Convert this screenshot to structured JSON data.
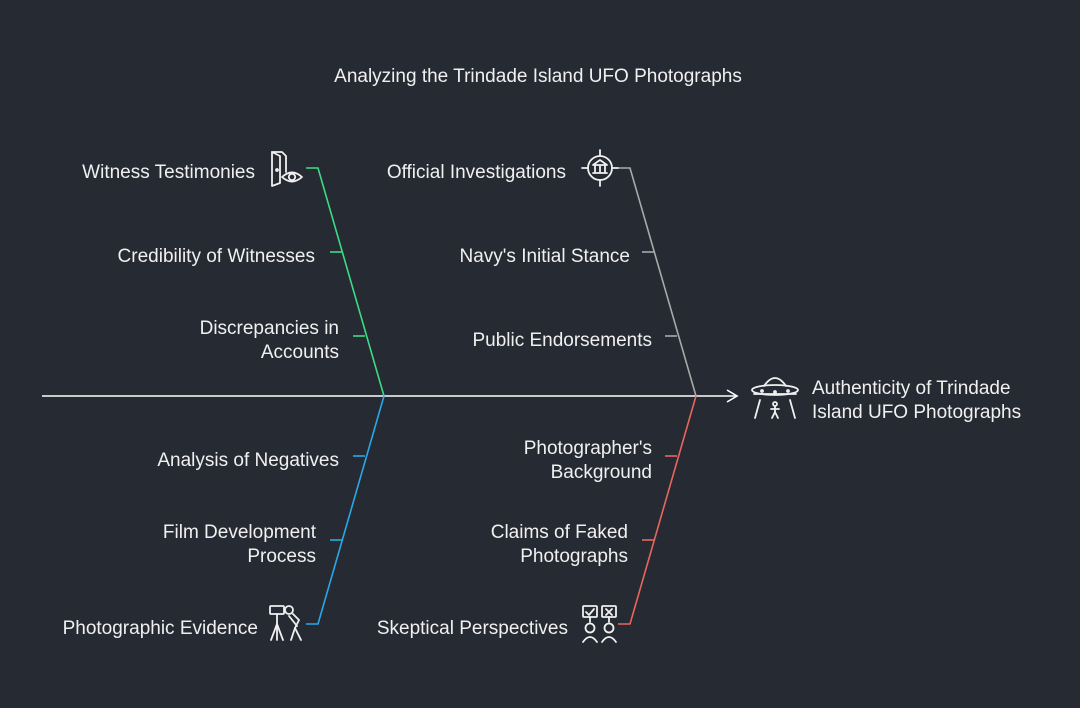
{
  "title": "Analyzing the Trindade Island UFO Photographs",
  "effect": {
    "line1": "Authenticity of Trindade",
    "line2": "Island UFO Photographs",
    "icon": "ufo-icon"
  },
  "colors": {
    "background": "#262a33",
    "spine": "#ffffff",
    "witness": "#3ddc84",
    "official": "#a9a9a9",
    "photographic": "#29a9e8",
    "skeptical": "#e8665f"
  },
  "categories": {
    "witness": {
      "label": "Witness Testimonies",
      "icon": "witness-eye-icon",
      "causes": [
        {
          "line1": "Credibility of Witnesses",
          "line2": ""
        },
        {
          "line1": "Discrepancies in",
          "line2": "Accounts"
        }
      ]
    },
    "official": {
      "label": "Official Investigations",
      "icon": "government-building-icon",
      "causes": [
        {
          "line1": "Navy's Initial Stance",
          "line2": ""
        },
        {
          "line1": "Public Endorsements",
          "line2": ""
        }
      ]
    },
    "photographic": {
      "label": "Photographic Evidence",
      "icon": "photographer-camera-icon",
      "causes": [
        {
          "line1": "Analysis of Negatives",
          "line2": ""
        },
        {
          "line1": "Film Development",
          "line2": "Process"
        }
      ]
    },
    "skeptical": {
      "label": "Skeptical Perspectives",
      "icon": "skeptics-checklist-icon",
      "causes": [
        {
          "line1": "Photographer's",
          "line2": "Background"
        },
        {
          "line1": "Claims of Faked",
          "line2": "Photographs"
        }
      ]
    }
  }
}
